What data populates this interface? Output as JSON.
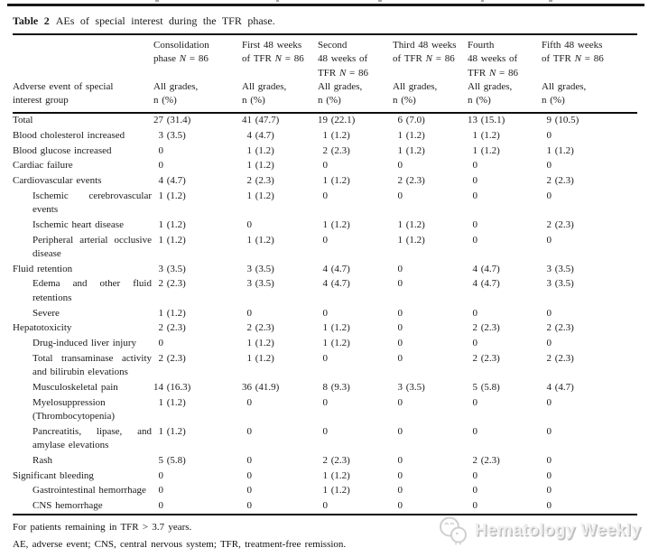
{
  "title": {
    "label": "Table 2",
    "text": "AEs of special interest during the TFR phase."
  },
  "header": {
    "row_label_lines": [
      "Adverse event of special",
      "interest group"
    ],
    "columns": [
      {
        "title_lines": [
          "Consolidation",
          "phase N = 86"
        ],
        "subtitle_lines": [
          "All grades,",
          "n (%)"
        ]
      },
      {
        "title_lines": [
          "First 48 weeks",
          "of TFR N = 86"
        ],
        "subtitle_lines": [
          "All grades,",
          "n (%)"
        ]
      },
      {
        "title_lines": [
          "Second",
          "48 weeks of",
          "TFR N = 86"
        ],
        "subtitle_lines": [
          "All grades,",
          "n (%)"
        ]
      },
      {
        "title_lines": [
          "Third 48 weeks",
          "of TFR N = 86"
        ],
        "subtitle_lines": [
          "All grades,",
          "n (%)"
        ]
      },
      {
        "title_lines": [
          "Fourth",
          "48 weeks of",
          "TFR N = 86"
        ],
        "subtitle_lines": [
          "All grades,",
          "n (%)"
        ]
      },
      {
        "title_lines": [
          "Fifth 48 weeks",
          "of TFR N = 86"
        ],
        "subtitle_lines": [
          "All grades,",
          "n (%)"
        ]
      }
    ]
  },
  "rows": [
    {
      "label": "Total",
      "indent": 0,
      "values": [
        "27 (31.4)",
        "41 (47.7)",
        "19 (22.1)",
        "6 (7.0)",
        "13 (15.1)",
        "9 (10.5)"
      ]
    },
    {
      "label": "Blood cholesterol increased",
      "indent": 0,
      "values": [
        "3 (3.5)",
        "4 (4.7)",
        "1 (1.2)",
        "1 (1.2)",
        "1 (1.2)",
        "0"
      ]
    },
    {
      "label": "Blood glucose increased",
      "indent": 0,
      "values": [
        "0",
        "1 (1.2)",
        "2 (2.3)",
        "1 (1.2)",
        "1 (1.2)",
        "1 (1.2)"
      ]
    },
    {
      "label": "Cardiac failure",
      "indent": 0,
      "values": [
        "0",
        "1 (1.2)",
        "0",
        "0",
        "0",
        "0"
      ]
    },
    {
      "label": "Cardiovascular events",
      "indent": 0,
      "values": [
        "4 (4.7)",
        "2 (2.3)",
        "1 (1.2)",
        "2 (2.3)",
        "0",
        "2 (2.3)"
      ]
    },
    {
      "label": "Ischemic cerebrovascular events",
      "indent": 1,
      "values": [
        "1 (1.2)",
        "1 (1.2)",
        "0",
        "0",
        "0",
        "0"
      ]
    },
    {
      "label": "Ischemic heart disease",
      "indent": 1,
      "values": [
        "1 (1.2)",
        "0",
        "1 (1.2)",
        "1 (1.2)",
        "0",
        "2 (2.3)"
      ]
    },
    {
      "label": "Peripheral arterial occlusive disease",
      "indent": 1,
      "values": [
        "1 (1.2)",
        "1 (1.2)",
        "0",
        "1 (1.2)",
        "0",
        "0"
      ]
    },
    {
      "label": "Fluid retention",
      "indent": 0,
      "values": [
        "3 (3.5)",
        "3 (3.5)",
        "4 (4.7)",
        "0",
        "4 (4.7)",
        "3 (3.5)"
      ]
    },
    {
      "label": "Edema and other fluid retentions",
      "indent": 1,
      "values": [
        "2 (2.3)",
        "3 (3.5)",
        "4 (4.7)",
        "0",
        "4 (4.7)",
        "3 (3.5)"
      ]
    },
    {
      "label": "Severe",
      "indent": 1,
      "values": [
        "1 (1.2)",
        "0",
        "0",
        "0",
        "0",
        "0"
      ]
    },
    {
      "label": "Hepatotoxicity",
      "indent": 0,
      "values": [
        "2 (2.3)",
        "2 (2.3)",
        "1 (1.2)",
        "0",
        "2 (2.3)",
        "2 (2.3)"
      ]
    },
    {
      "label": "Drug-induced liver injury",
      "indent": 1,
      "values": [
        "0",
        "1 (1.2)",
        "1 (1.2)",
        "0",
        "0",
        "0"
      ]
    },
    {
      "label": "Total transaminase activity and bilirubin elevations",
      "indent": 1,
      "values": [
        "2 (2.3)",
        "1 (1.2)",
        "0",
        "0",
        "2 (2.3)",
        "2 (2.3)"
      ]
    },
    {
      "label": "Musculoskeletal pain",
      "indent": 1,
      "values": [
        "14 (16.3)",
        "36 (41.9)",
        "8 (9.3)",
        "3 (3.5)",
        "5 (5.8)",
        "4 (4.7)"
      ]
    },
    {
      "label": "Myelosuppression (Thrombocytopenia)",
      "indent": 1,
      "values": [
        "1 (1.2)",
        "0",
        "0",
        "0",
        "0",
        "0"
      ]
    },
    {
      "label": "Pancreatitis, lipase, and amylase elevations",
      "indent": 1,
      "values": [
        "1 (1.2)",
        "0",
        "0",
        "0",
        "0",
        "0"
      ]
    },
    {
      "label": "Rash",
      "indent": 1,
      "values": [
        "5 (5.8)",
        "0",
        "2 (2.3)",
        "0",
        "2 (2.3)",
        "0"
      ]
    },
    {
      "label": "Significant bleeding",
      "indent": 0,
      "values": [
        "0",
        "0",
        "1 (1.2)",
        "0",
        "0",
        "0"
      ]
    },
    {
      "label": "Gastrointestinal hemorrhage",
      "indent": 1,
      "values": [
        "0",
        "0",
        "1 (1.2)",
        "0",
        "0",
        "0"
      ]
    },
    {
      "label": "CNS hemorrhage",
      "indent": 1,
      "values": [
        "0",
        "0",
        "0",
        "0",
        "0",
        "0"
      ]
    }
  ],
  "footnotes": [
    "For patients remaining in TFR > 3.7 years.",
    "AE, adverse event; CNS, central nervous system; TFR, treatment-free remission."
  ],
  "watermark": {
    "text": "Hematology Weekly"
  }
}
